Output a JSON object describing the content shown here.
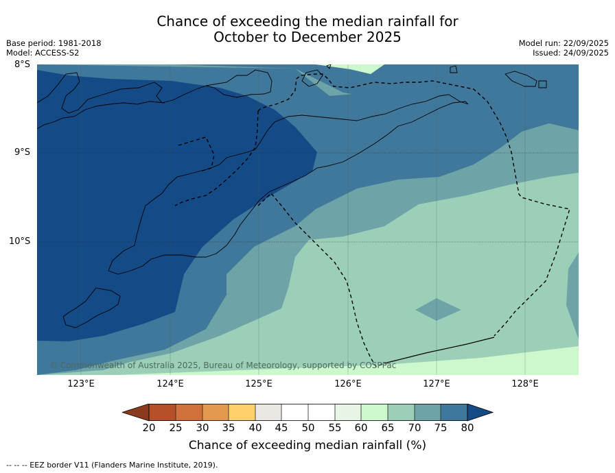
{
  "title": {
    "line1": "Chance of exceeding the median rainfall for",
    "line2": "October to December 2025"
  },
  "meta_left": {
    "base_period": "Base period: 1981-2018",
    "model": "Model: ACCESS-S2"
  },
  "meta_right": {
    "model_run": "Model run: 22/09/2025",
    "issued": "Issued: 24/09/2025"
  },
  "axes": {
    "lat_labels": [
      "8°S",
      "9°S",
      "10°S"
    ],
    "lon_labels": [
      "123°E",
      "124°E",
      "125°E",
      "126°E",
      "127°E",
      "128°E"
    ]
  },
  "copyright": "© Commonwealth of Australia 2025, Bureau of Meteorology, supported by COSPPac",
  "colorbar": {
    "title": "Chance of exceeding median rainfall (%)",
    "ticks": [
      "20",
      "25",
      "30",
      "35",
      "40",
      "45",
      "50",
      "55",
      "60",
      "65",
      "70",
      "75",
      "80"
    ],
    "colors": [
      "#8b3a1e",
      "#b5502a",
      "#d0703a",
      "#e3994f",
      "#fdd06b",
      "#ebe7e2",
      "#ffffff",
      "#ffffff",
      "#e6f5e6",
      "#cdf8cd",
      "#9ccfb8",
      "#6ea4a7",
      "#40789b",
      "#144a86"
    ]
  },
  "footnote": "--  --  -- EEZ border V11 (Flanders Marine Institute, 2019)."
}
